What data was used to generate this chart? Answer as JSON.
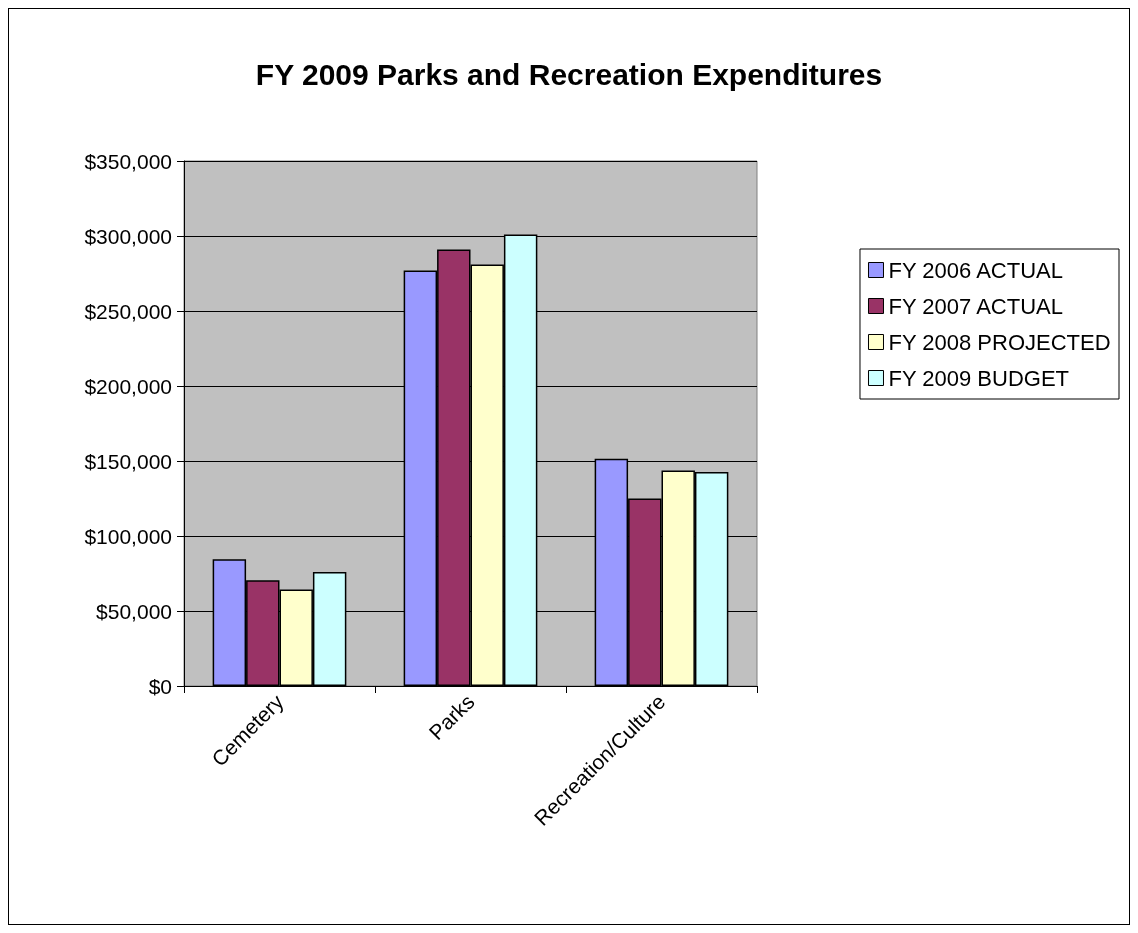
{
  "chart_data": {
    "type": "bar",
    "title": "FY 2009 Parks and Recreation Expenditures",
    "categories": [
      "Cemetery",
      "Parks",
      "Recreation/Culture"
    ],
    "series": [
      {
        "name": "FY 2006 ACTUAL",
        "color": "#9999ff",
        "values": [
          84500,
          277000,
          151500
        ]
      },
      {
        "name": "FY 2007 ACTUAL",
        "color": "#993366",
        "values": [
          70500,
          291000,
          125000
        ]
      },
      {
        "name": "FY 2008 PROJECTED",
        "color": "#ffffcc",
        "values": [
          64300,
          281000,
          143700
        ]
      },
      {
        "name": "FY 2009 BUDGET",
        "color": "#ccffff",
        "values": [
          76000,
          301000,
          142700
        ]
      }
    ],
    "ylim": [
      0,
      350000
    ],
    "yticks": [
      {
        "value": 0,
        "label": "$0"
      },
      {
        "value": 50000,
        "label": "$50,000"
      },
      {
        "value": 100000,
        "label": "$100,000"
      },
      {
        "value": 150000,
        "label": "$150,000"
      },
      {
        "value": 200000,
        "label": "$200,000"
      },
      {
        "value": 250000,
        "label": "$250,000"
      },
      {
        "value": 300000,
        "label": "$300,000"
      },
      {
        "value": 350000,
        "label": "$350,000"
      }
    ],
    "grid": "y",
    "legend": "right"
  }
}
